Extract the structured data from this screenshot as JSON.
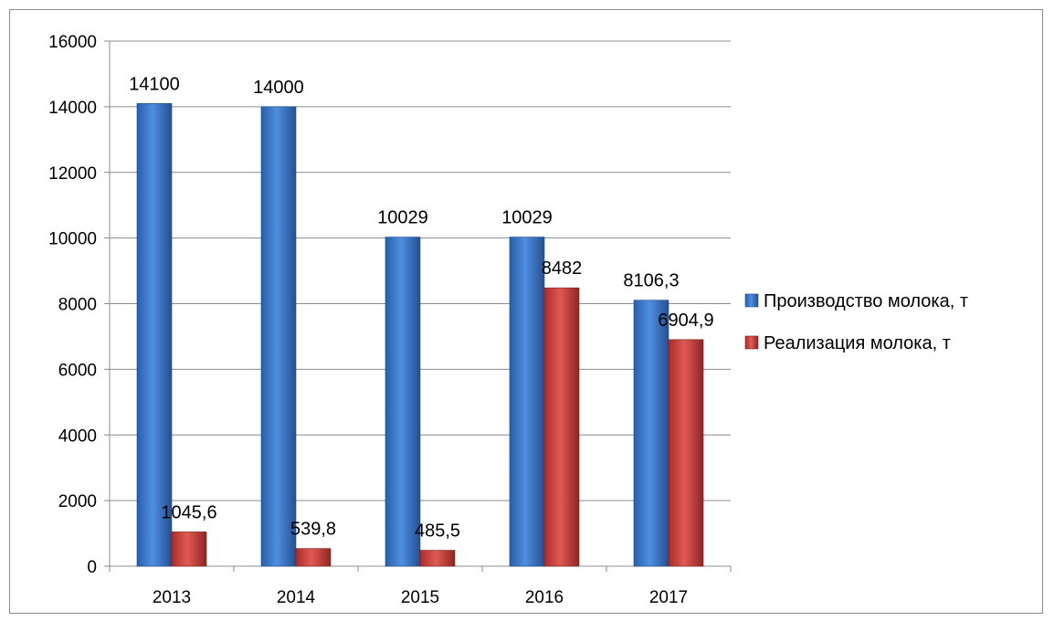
{
  "chart_data": {
    "type": "bar",
    "title": "",
    "xlabel": "",
    "ylabel": "",
    "categories": [
      "2013",
      "2014",
      "2015",
      "2016",
      "2017"
    ],
    "series": [
      {
        "name": "Производство молока, т",
        "values": [
          14100,
          14000,
          10029,
          10029,
          8106.3
        ],
        "labels": [
          "14100",
          "14000",
          "10029",
          "10029",
          "8106,3"
        ]
      },
      {
        "name": "Реализация молока, т",
        "values": [
          1045.6,
          539.8,
          485.5,
          8482,
          6904.9
        ],
        "labels": [
          "1045,6",
          "539,8",
          "485,5",
          "8482",
          "6904,9"
        ]
      }
    ],
    "ylim": [
      0,
      16000
    ],
    "yticks": [
      "0",
      "2000",
      "4000",
      "6000",
      "8000",
      "10000",
      "12000",
      "14000",
      "16000"
    ],
    "grid": true,
    "legend_position": "right",
    "colors": [
      "#3f76c8",
      "#c63a36"
    ]
  }
}
